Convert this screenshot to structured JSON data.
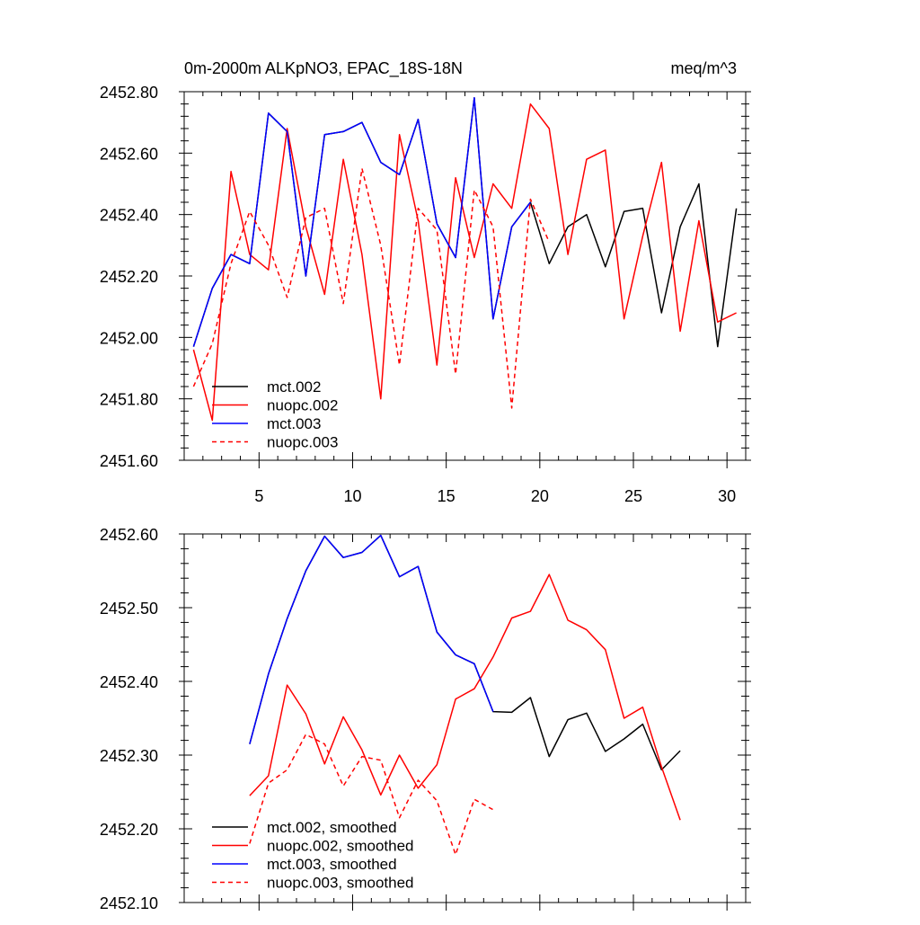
{
  "chart_data": [
    {
      "type": "line",
      "title": "0m-2000m ALKpNO3, EPAC_18S-18N",
      "title_right": "meq/m^3",
      "xlabel": "",
      "ylabel": "",
      "xlim": [
        1,
        31
      ],
      "ylim": [
        2451.6,
        2452.8
      ],
      "xticks": [
        5,
        10,
        15,
        20,
        25,
        30
      ],
      "xtick_labels": [
        "5",
        "10",
        "15",
        "20",
        "25",
        "30"
      ],
      "yticks": [
        2451.6,
        2451.8,
        2452.0,
        2452.2,
        2452.4,
        2452.6,
        2452.8
      ],
      "ytick_labels": [
        "2451.60",
        "2451.80",
        "2452.00",
        "2452.20",
        "2452.40",
        "2452.60",
        "2452.80"
      ],
      "legend_position": "bottom-left",
      "series": [
        {
          "name": "mct.002",
          "color": "#000000",
          "dash": "solid",
          "x": [
            1.5,
            2.5,
            3.5,
            4.5,
            5.5,
            6.5,
            7.5,
            8.5,
            9.5,
            10.5,
            11.5,
            12.5,
            13.5,
            14.5,
            15.5,
            16.5,
            17.5,
            18.5,
            19.5,
            20.5,
            21.5,
            22.5,
            23.5,
            24.5,
            25.5,
            26.5,
            27.5,
            28.5,
            29.5,
            30.5
          ],
          "values": [
            2451.97,
            2452.16,
            2452.27,
            2452.24,
            2452.73,
            2452.67,
            2452.2,
            2452.66,
            2452.67,
            2452.7,
            2452.57,
            2452.53,
            2452.71,
            2452.37,
            2452.26,
            2452.78,
            2452.06,
            2452.36,
            2452.44,
            2452.24,
            2452.36,
            2452.4,
            2452.23,
            2452.41,
            2452.42,
            2452.08,
            2452.36,
            2452.5,
            2451.97,
            2452.42
          ]
        },
        {
          "name": "nuopc.002",
          "color": "#ff0000",
          "dash": "solid",
          "x": [
            1.5,
            2.5,
            3.5,
            4.5,
            5.5,
            6.5,
            7.5,
            8.5,
            9.5,
            10.5,
            11.5,
            12.5,
            13.5,
            14.5,
            15.5,
            16.5,
            17.5,
            18.5,
            19.5,
            20.5,
            21.5,
            22.5,
            23.5,
            24.5,
            25.5,
            26.5,
            27.5,
            28.5,
            29.5,
            30.5
          ],
          "values": [
            2451.96,
            2451.73,
            2452.54,
            2452.27,
            2452.22,
            2452.68,
            2452.36,
            2452.14,
            2452.58,
            2452.27,
            2451.8,
            2452.66,
            2452.38,
            2451.91,
            2452.52,
            2452.26,
            2452.5,
            2452.42,
            2452.76,
            2452.68,
            2452.27,
            2452.58,
            2452.61,
            2452.06,
            2452.33,
            2452.57,
            2452.02,
            2452.38,
            2452.05,
            2452.08
          ]
        },
        {
          "name": "mct.003",
          "color": "#0000ff",
          "dash": "solid",
          "x": [
            1.5,
            2.5,
            3.5,
            4.5,
            5.5,
            6.5,
            7.5,
            8.5,
            9.5,
            10.5,
            11.5,
            12.5,
            13.5,
            14.5,
            15.5,
            16.5,
            17.5,
            18.5,
            19.5
          ],
          "values": [
            2451.97,
            2452.16,
            2452.27,
            2452.24,
            2452.73,
            2452.67,
            2452.2,
            2452.66,
            2452.67,
            2452.7,
            2452.57,
            2452.53,
            2452.71,
            2452.37,
            2452.26,
            2452.78,
            2452.06,
            2452.36,
            2452.44
          ]
        },
        {
          "name": "nuopc.003",
          "color": "#ff0000",
          "dash": "dashed",
          "x": [
            1.5,
            2.5,
            3.5,
            4.5,
            5.5,
            6.5,
            7.5,
            8.5,
            9.5,
            10.5,
            11.5,
            12.5,
            13.5,
            14.5,
            15.5,
            16.5,
            17.5,
            18.5,
            19.5,
            20.5
          ],
          "values": [
            2451.84,
            2451.98,
            2452.24,
            2452.41,
            2452.3,
            2452.13,
            2452.39,
            2452.42,
            2452.11,
            2452.55,
            2452.3,
            2451.91,
            2452.42,
            2452.35,
            2451.88,
            2452.48,
            2452.36,
            2451.77,
            2452.45,
            2452.31
          ]
        }
      ]
    },
    {
      "type": "line",
      "title": "",
      "xlabel": "",
      "ylabel": "",
      "xlim": [
        1,
        31
      ],
      "ylim": [
        2452.1,
        2452.6
      ],
      "xticks": [
        5,
        10,
        15,
        20,
        25,
        30
      ],
      "xtick_labels": [],
      "yticks": [
        2452.1,
        2452.2,
        2452.3,
        2452.4,
        2452.5,
        2452.6
      ],
      "ytick_labels": [
        "2452.10",
        "2452.20",
        "2452.30",
        "2452.40",
        "2452.50",
        "2452.60"
      ],
      "legend_position": "bottom-left",
      "series": [
        {
          "name": "mct.002, smoothed",
          "color": "#000000",
          "dash": "solid",
          "x": [
            4.5,
            5.5,
            6.5,
            7.5,
            8.5,
            9.5,
            10.5,
            11.5,
            12.5,
            13.5,
            14.5,
            15.5,
            16.5,
            17.5,
            18.5,
            19.5,
            20.5,
            21.5,
            22.5,
            23.5,
            24.5,
            25.5,
            26.5,
            27.5
          ],
          "values": [
            2452.315,
            2452.41,
            2452.485,
            2452.55,
            2452.597,
            2452.568,
            2452.575,
            2452.598,
            2452.542,
            2452.556,
            2452.467,
            2452.436,
            2452.424,
            2452.359,
            2452.358,
            2452.378,
            2452.298,
            2452.348,
            2452.357,
            2452.305,
            2452.322,
            2452.342,
            2452.28,
            2452.306
          ]
        },
        {
          "name": "nuopc.002, smoothed",
          "color": "#ff0000",
          "dash": "solid",
          "x": [
            4.5,
            5.5,
            6.5,
            7.5,
            8.5,
            9.5,
            10.5,
            11.5,
            12.5,
            13.5,
            14.5,
            15.5,
            16.5,
            17.5,
            18.5,
            19.5,
            20.5,
            21.5,
            22.5,
            23.5,
            24.5,
            25.5,
            26.5,
            27.5
          ],
          "values": [
            2452.245,
            2452.272,
            2452.395,
            2452.356,
            2452.288,
            2452.352,
            2452.307,
            2452.246,
            2452.3,
            2452.255,
            2452.287,
            2452.376,
            2452.39,
            2452.433,
            2452.486,
            2452.495,
            2452.545,
            2452.483,
            2452.47,
            2452.443,
            2452.35,
            2452.365,
            2452.284,
            2452.212
          ]
        },
        {
          "name": "mct.003, smoothed",
          "color": "#0000ff",
          "dash": "solid",
          "x": [
            4.5,
            5.5,
            6.5,
            7.5,
            8.5,
            9.5,
            10.5,
            11.5,
            12.5,
            13.5,
            14.5,
            15.5,
            16.5,
            17.5
          ],
          "values": [
            2452.315,
            2452.41,
            2452.485,
            2452.55,
            2452.597,
            2452.568,
            2452.575,
            2452.598,
            2452.542,
            2452.556,
            2452.467,
            2452.436,
            2452.424,
            2452.359
          ]
        },
        {
          "name": "nuopc.003, smoothed",
          "color": "#ff0000",
          "dash": "dashed",
          "x": [
            4.5,
            5.5,
            6.5,
            7.5,
            8.5,
            9.5,
            10.5,
            11.5,
            12.5,
            13.5,
            14.5,
            15.5,
            16.5,
            17.5
          ],
          "values": [
            2452.18,
            2452.262,
            2452.28,
            2452.328,
            2452.315,
            2452.258,
            2452.298,
            2452.293,
            2452.215,
            2452.266,
            2452.238,
            2452.165,
            2452.24,
            2452.226
          ]
        }
      ]
    }
  ]
}
